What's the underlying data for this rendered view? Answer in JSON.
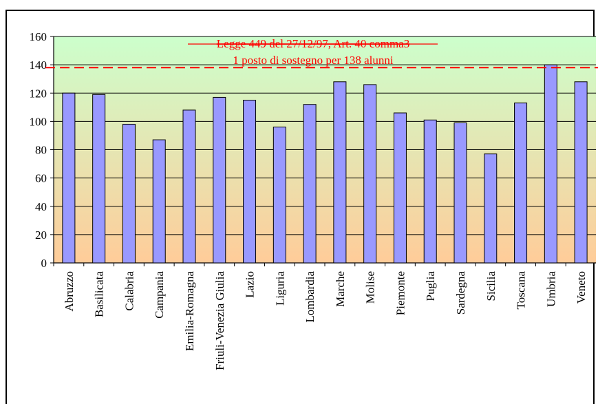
{
  "chart_data": {
    "type": "bar",
    "title": "",
    "xlabel": "",
    "ylabel": "",
    "categories": [
      "Abruzzo",
      "Basilicata",
      "Calabria",
      "Campania",
      "Emilia-Romagna",
      "Friuli-Venezia Giulia",
      "Lazio",
      "Liguria",
      "Lombardia",
      "Marche",
      "Molise",
      "Piemonte",
      "Puglia",
      "Sardegna",
      "Sicilia",
      "Toscana",
      "Umbria",
      "Veneto"
    ],
    "values": [
      120,
      119,
      98,
      87,
      108,
      117,
      115,
      96,
      112,
      128,
      126,
      106,
      101,
      99,
      77,
      113,
      140,
      128
    ],
    "ylim": [
      0,
      160
    ],
    "yticks": [
      0,
      20,
      40,
      60,
      80,
      100,
      120,
      140,
      160
    ],
    "grid": true,
    "bar_color": "#9999ff",
    "background_gradient": [
      "#ccffcc",
      "#ffcc99"
    ],
    "reference_line": {
      "value": 138,
      "color": "#ff0000",
      "style": "dashed",
      "annotation_lines": [
        "Legge 449 del 27/12/97, Art. 40 comma3",
        "1 posto di sostegno per 138 alunni"
      ]
    }
  }
}
